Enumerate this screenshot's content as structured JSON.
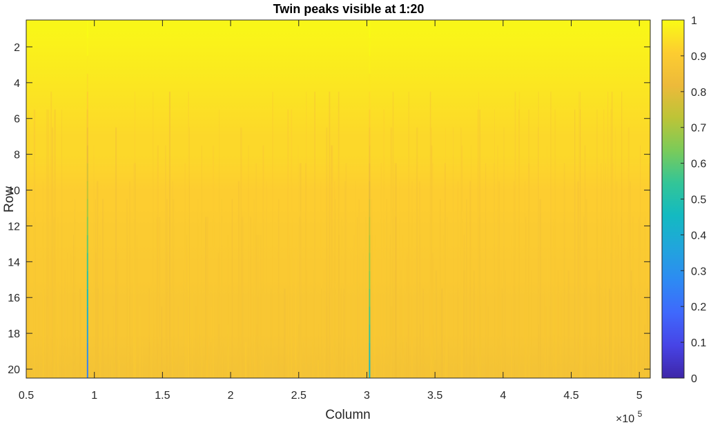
{
  "chart_data": {
    "type": "heatmap",
    "title": "Twin peaks visible at 1:20",
    "xlabel": "Column",
    "ylabel": "Row",
    "x_exponent_label": "×10",
    "x_exponent": "5",
    "xlim": [
      0.5,
      5.08
    ],
    "ylim": [
      0.5,
      20.5
    ],
    "x_ticks": [
      0.5,
      1,
      1.5,
      2,
      2.5,
      3,
      3.5,
      4,
      4.5,
      5
    ],
    "x_tick_labels": [
      "0.5",
      "1",
      "1.5",
      "2",
      "2.5",
      "3",
      "3.5",
      "4",
      "4.5",
      "5"
    ],
    "y_ticks": [
      2,
      4,
      6,
      8,
      10,
      12,
      14,
      16,
      18,
      20
    ],
    "y_tick_labels": [
      "2",
      "4",
      "6",
      "8",
      "10",
      "12",
      "14",
      "16",
      "18",
      "20"
    ],
    "y_reversed": true,
    "rows": 20,
    "colormap": "parula",
    "colormap_stops": [
      "#3e26a8",
      "#4744e6",
      "#3f68fc",
      "#2d8af3",
      "#21a5dc",
      "#13bac1",
      "#33c597",
      "#7bcb59",
      "#bdc437",
      "#edba3a",
      "#fdcd30",
      "#f9fb15"
    ],
    "clim": [
      0,
      1
    ],
    "colorbar_ticks": [
      0,
      0.1,
      0.2,
      0.3,
      0.4,
      0.5,
      0.6,
      0.7,
      0.8,
      0.9,
      1
    ],
    "colorbar_tick_labels": [
      "0",
      "0.1",
      "0.2",
      "0.3",
      "0.4",
      "0.5",
      "0.6",
      "0.7",
      "0.8",
      "0.9",
      "1"
    ],
    "grid": false,
    "row_mean_values": [
      0.99,
      0.98,
      0.97,
      0.96,
      0.95,
      0.94,
      0.93,
      0.93,
      0.92,
      0.91,
      0.91,
      0.9,
      0.9,
      0.89,
      0.89,
      0.88,
      0.88,
      0.88,
      0.87,
      0.86
    ],
    "peaks": [
      {
        "column": 0.95,
        "min_value": 0.25
      },
      {
        "column": 3.02,
        "min_value": 0.45
      }
    ]
  }
}
